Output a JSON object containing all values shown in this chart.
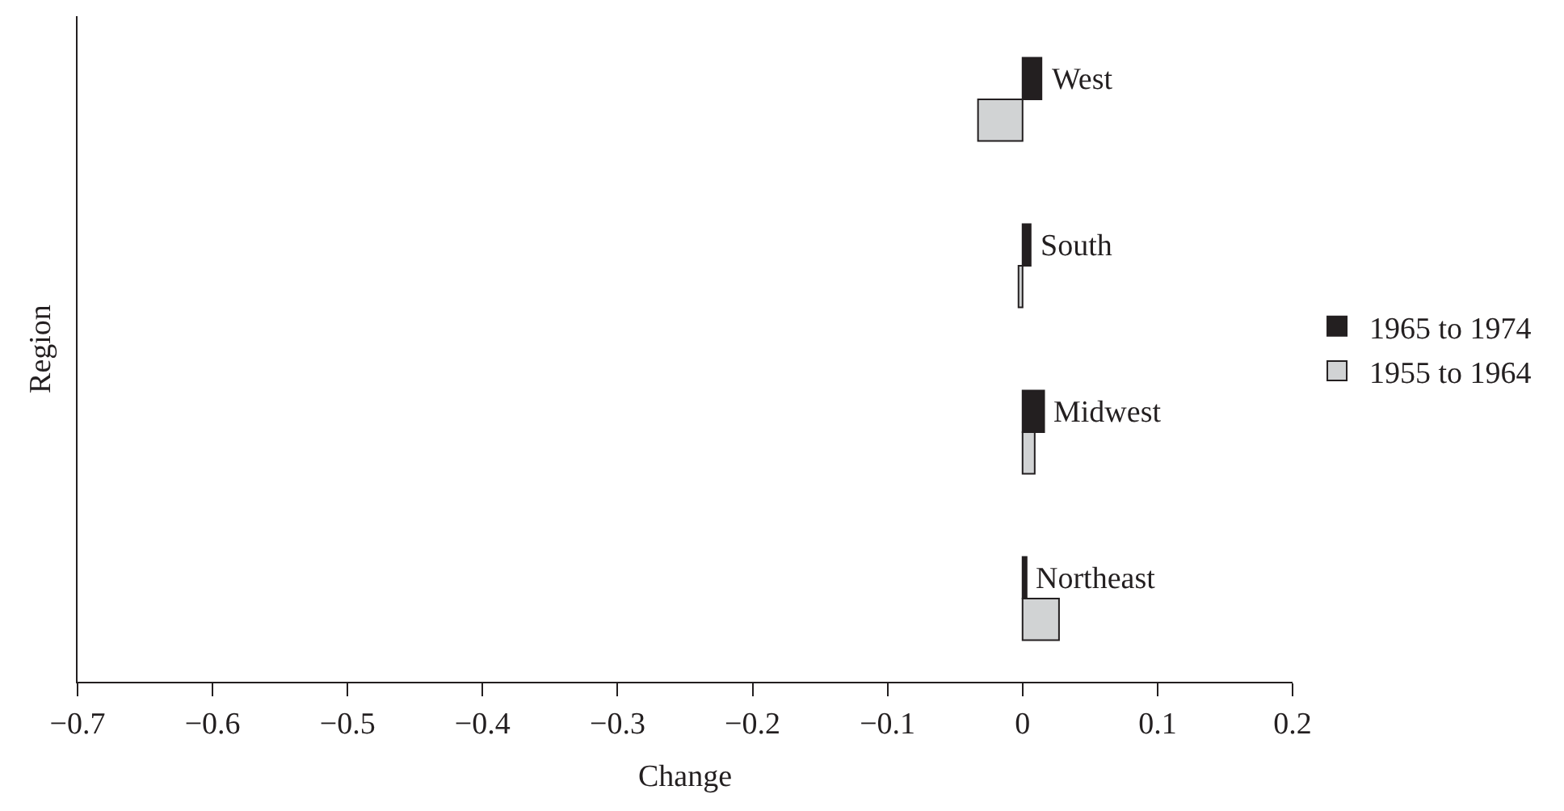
{
  "chart_data": {
    "type": "bar",
    "orientation": "horizontal",
    "xlabel": "Change",
    "ylabel": "Region",
    "categories": [
      "West",
      "South",
      "Midwest",
      "Northeast"
    ],
    "series": [
      {
        "name": "1965 to 1974",
        "color": "#231f20",
        "values": [
          0.014,
          0.006,
          0.016,
          0.003
        ]
      },
      {
        "name": "1955 to 1964",
        "color": "#d1d3d4",
        "values": [
          -0.033,
          -0.003,
          0.009,
          0.027
        ]
      }
    ],
    "xlim": [
      -0.7,
      0.2
    ],
    "xticks": [
      {
        "value": -0.7,
        "label": "−0.7"
      },
      {
        "value": -0.6,
        "label": "−0.6"
      },
      {
        "value": -0.5,
        "label": "−0.5"
      },
      {
        "value": -0.4,
        "label": "−0.4"
      },
      {
        "value": -0.3,
        "label": "−0.3"
      },
      {
        "value": -0.2,
        "label": "−0.2"
      },
      {
        "value": -0.1,
        "label": "−0.1"
      },
      0,
      0.1,
      0.2
    ],
    "tick_labels": "x",
    "legend": "right"
  }
}
